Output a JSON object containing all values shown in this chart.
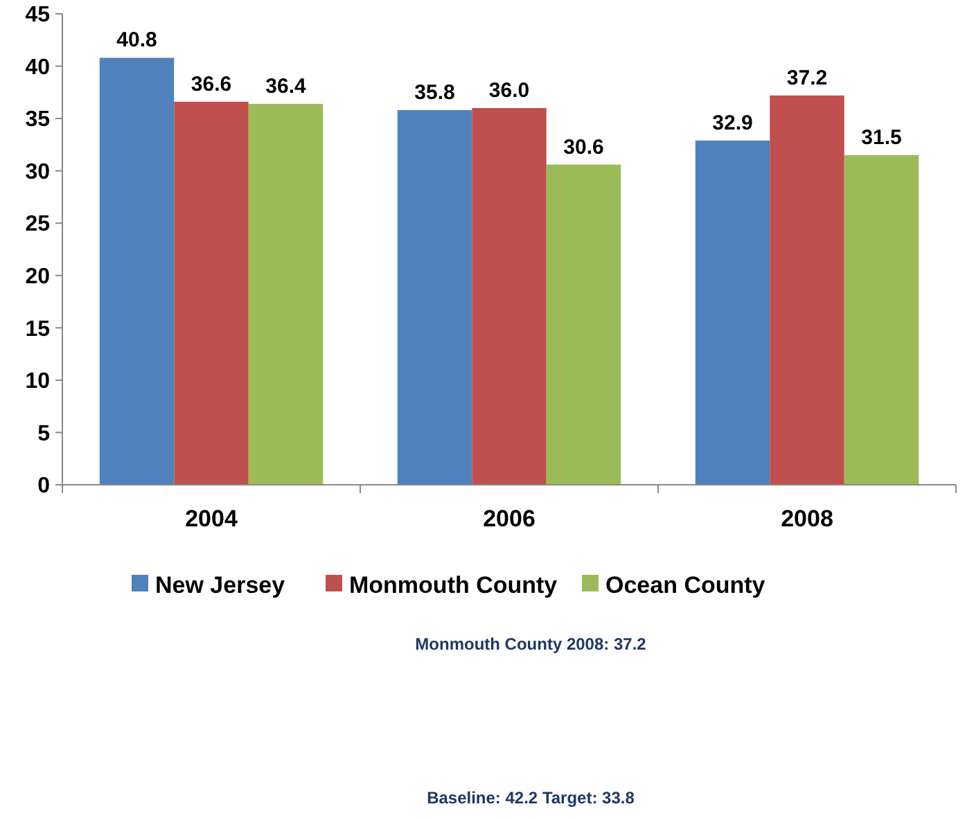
{
  "chart_data": {
    "type": "bar",
    "categories": [
      "2004",
      "2006",
      "2008"
    ],
    "series": [
      {
        "name": "New Jersey",
        "color": "#4f81bd",
        "values": [
          40.8,
          35.8,
          32.9
        ]
      },
      {
        "name": "Monmouth County",
        "color": "#c0504d",
        "values": [
          36.6,
          36.0,
          37.2
        ]
      },
      {
        "name": "Ocean County",
        "color": "#9bbb59",
        "values": [
          36.4,
          30.6,
          31.5
        ]
      }
    ],
    "value_labels": [
      [
        "40.8",
        "35.8",
        "32.9"
      ],
      [
        "36.6",
        "36.0",
        "37.2"
      ],
      [
        "36.4",
        "30.6",
        "31.5"
      ]
    ],
    "ylim": [
      0,
      45
    ],
    "yticks": [
      0,
      5,
      10,
      15,
      20,
      25,
      30,
      35,
      40,
      45
    ],
    "grid": false,
    "legend": "bottom",
    "annotations": [
      "Monmouth County 2008: 37.2",
      "Baseline: 42.2 Target: 33.8"
    ]
  }
}
